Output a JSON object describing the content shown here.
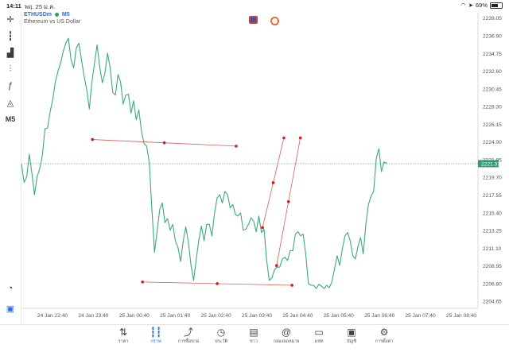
{
  "status_bar": {
    "time": "14:11",
    "date": "พฤ. 25 ม.ค.",
    "battery": "69%",
    "battery_level": 0.69
  },
  "symbol": {
    "name": "ETHUSDm",
    "timeframe": "M5",
    "description": "Ethereum vs US Dollar"
  },
  "left_toolbar": [
    {
      "name": "crosshair-icon",
      "glyph": "✛"
    },
    {
      "name": "candlestick-icon",
      "glyph": "┇"
    },
    {
      "name": "bar-chart-icon",
      "glyph": "▟"
    },
    {
      "name": "sliders-icon",
      "glyph": "⫶"
    },
    {
      "name": "function-icon",
      "glyph": "ƒ"
    },
    {
      "name": "shapes-icon",
      "glyph": "◬"
    },
    {
      "name": "timeframe-button",
      "glyph": "M5"
    }
  ],
  "chart_data": {
    "type": "line",
    "symbol": "ETHUSDm",
    "timeframe": "M5",
    "series_color": "#3aaa7d",
    "ylim": [
      2203.8,
      2239.7
    ],
    "y_ticks": [
      "2239.05",
      "2236.90",
      "2234.75",
      "2232.60",
      "2230.45",
      "2228.30",
      "2226.15",
      "2224.00",
      "2221.85",
      "2219.70",
      "2217.55",
      "2215.40",
      "2213.25",
      "2211.10",
      "2208.95",
      "2206.80",
      "2204.65"
    ],
    "x_ticks": [
      "24 Jan 22:40",
      "24 Jan 23:40",
      "25 Jan 00:40",
      "25 Jan 01:40",
      "25 Jan 02:40",
      "25 Jan 03:40",
      "25 Jan 04:40",
      "25 Jan 05:40",
      "25 Jan 06:40",
      "25 Jan 07:40",
      "25 Jan 08:40"
    ],
    "current_price": "2221.37",
    "current_price_value": 2221.37,
    "price": [
      2221.3,
      2219.1,
      2219.8,
      2222.5,
      2220.2,
      2217.6,
      2219.8,
      2220.8,
      2222.3,
      2225.6,
      2225.7,
      2227.7,
      2229.2,
      2231.3,
      2232.6,
      2233.6,
      2235.0,
      2236.0,
      2236.6,
      2234.0,
      2233.0,
      2235.4,
      2236.0,
      2234.0,
      2232.0,
      2230.4,
      2228.0,
      2231.3,
      2233.5,
      2235.8,
      2233.1,
      2231.2,
      2232.4,
      2234.8,
      2233.0,
      2230.0,
      2229.7,
      2232.2,
      2231.3,
      2228.6,
      2229.7,
      2229.8,
      2227.5,
      2229.0,
      2226.7,
      2227.9,
      2225.3,
      2223.8,
      2223.5,
      2221.5,
      2215.8,
      2210.6,
      2213.2,
      2215.8,
      2216.6,
      2214.2,
      2214.7,
      2213.3,
      2214.0,
      2212.0,
      2211.2,
      2209.5,
      2212.0,
      2213.7,
      2211.8,
      2209.0,
      2207.2,
      2209.8,
      2212.1,
      2213.8,
      2212.0,
      2214.0,
      2214.0,
      2212.6,
      2215.3,
      2217.2,
      2217.6,
      2216.6,
      2218.0,
      2217.6,
      2216.0,
      2216.4,
      2215.2,
      2215.0,
      2215.4,
      2213.3,
      2213.4,
      2214.0,
      2214.8,
      2214.4,
      2213.1,
      2215.0,
      2213.0,
      2213.4,
      2209.6,
      2207.2,
      2207.5,
      2208.5,
      2208.8,
      2208.8,
      2209.8,
      2210.0,
      2209.6,
      2210.8,
      2210.8,
      2212.8,
      2213.1,
      2212.6,
      2212.8,
      2210.3,
      2206.8,
      2206.6,
      2206.6,
      2206.2,
      2206.7,
      2206.5,
      2206.2,
      2206.6,
      2206.3,
      2207.0,
      2208.6,
      2210.2,
      2209.0,
      2211.0,
      2212.6,
      2213.0,
      2212.0,
      2210.2,
      2209.8,
      2211.3,
      2212.4,
      2210.4,
      2214.0,
      2216.4,
      2217.4,
      2218.0,
      2222.0,
      2223.2,
      2220.4,
      2221.6,
      2221.4
    ],
    "trend_lines": [
      {
        "x": [
          27.2,
          82.3
        ],
        "y": [
          2224.3,
          2223.5
        ],
        "handles": [
          0,
          1,
          2
        ]
      },
      {
        "x": [
          46.4,
          103.7
        ],
        "y": [
          2207.0,
          2206.6
        ],
        "handles": [
          0,
          1,
          2
        ]
      },
      {
        "x": [
          92.4,
          100.6
        ],
        "y": [
          2213.6,
          2224.5
        ],
        "handles": [
          0,
          1,
          2
        ]
      },
      {
        "x": [
          97.8,
          106.9
        ],
        "y": [
          2209.0,
          2224.5
        ],
        "handles": [
          0,
          1,
          2
        ]
      }
    ]
  },
  "bottom_nav": [
    {
      "name": "nav-quotes",
      "label": "ราคา",
      "glyph": "⇅",
      "active": false
    },
    {
      "name": "nav-chart",
      "label": "กราฟ",
      "glyph": "┇┇",
      "active": true
    },
    {
      "name": "nav-trade",
      "label": "การซื้อขาย",
      "glyph": "⤴",
      "active": false
    },
    {
      "name": "nav-history",
      "label": "ประวัติ",
      "glyph": "◷",
      "active": false
    },
    {
      "name": "nav-news",
      "label": "ข่าว",
      "glyph": "▤",
      "active": false
    },
    {
      "name": "nav-mailbox",
      "label": "กล่องจดหมาย",
      "glyph": "@",
      "active": false
    },
    {
      "name": "nav-chat",
      "label": "แชท",
      "glyph": "▭",
      "active": false
    },
    {
      "name": "nav-account",
      "label": "บัญชี",
      "glyph": "▣",
      "active": false
    },
    {
      "name": "nav-settings",
      "label": "การตั้งค่า",
      "glyph": "⚙",
      "active": false
    }
  ]
}
